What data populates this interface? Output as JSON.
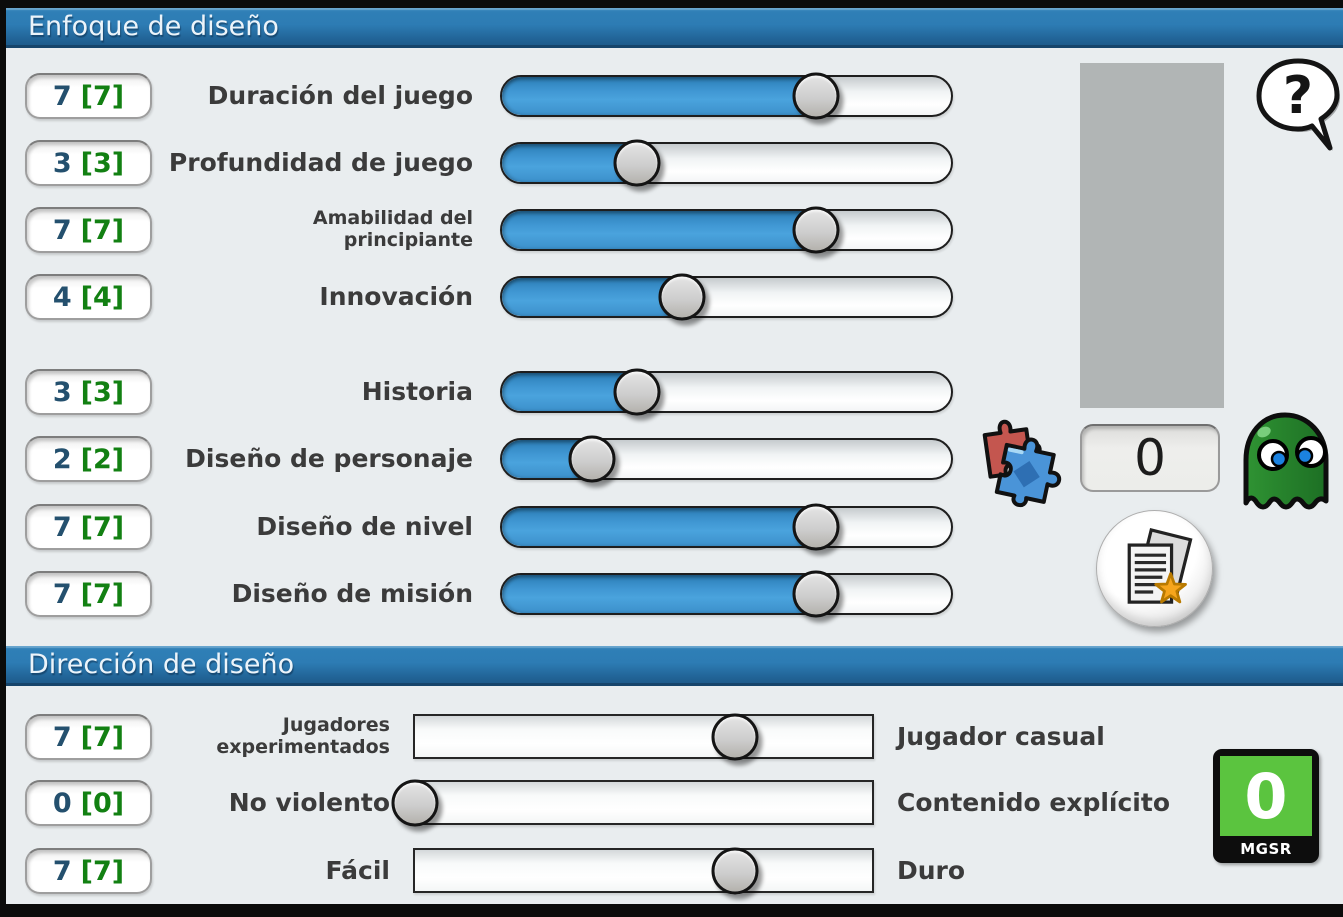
{
  "slider_max": 10,
  "focus_section": {
    "title": "Enfoque de diseño",
    "rows": [
      {
        "num": "7",
        "bracket": "[7]",
        "label": "Duración del juego",
        "value": 7
      },
      {
        "num": "3",
        "bracket": "[3]",
        "label": "Profundidad de juego",
        "value": 3
      },
      {
        "num": "7",
        "bracket": "[7]",
        "label": "Amabilidad del principiante",
        "value": 7
      },
      {
        "num": "4",
        "bracket": "[4]",
        "label": "Innovación",
        "value": 4
      },
      {
        "num": "3",
        "bracket": "[3]",
        "label": "Historia",
        "value": 3
      },
      {
        "num": "2",
        "bracket": "[2]",
        "label": "Diseño de personaje",
        "value": 2
      },
      {
        "num": "7",
        "bracket": "[7]",
        "label": "Diseño de nivel",
        "value": 7
      },
      {
        "num": "7",
        "bracket": "[7]",
        "label": "Diseño de misión",
        "value": 7
      }
    ]
  },
  "direction_section": {
    "title": "Dirección de diseño",
    "rows": [
      {
        "num": "7",
        "bracket": "[7]",
        "label_left": "Jugadores experimentados",
        "label_right": "Jugador casual",
        "value": 7
      },
      {
        "num": "0",
        "bracket": "[0]",
        "label_left": "No violento",
        "label_right": "Contenido explícito",
        "value": 0
      },
      {
        "num": "7",
        "bracket": "[7]",
        "label_left": "Fácil",
        "label_right": "Duro",
        "value": 7
      }
    ]
  },
  "side_panel": {
    "help_label": "?",
    "counter_value": "0"
  },
  "rating_badge": {
    "value": "0",
    "label": "MGSR",
    "color": "#5bc43f"
  },
  "colors": {
    "header_blue_top": "#2f7fb6",
    "header_blue_bottom": "#1e5c8c",
    "slider_fill": "#3f96d2",
    "value_num": "#24506e",
    "value_bracket": "#128012",
    "background": "#e9edef"
  }
}
